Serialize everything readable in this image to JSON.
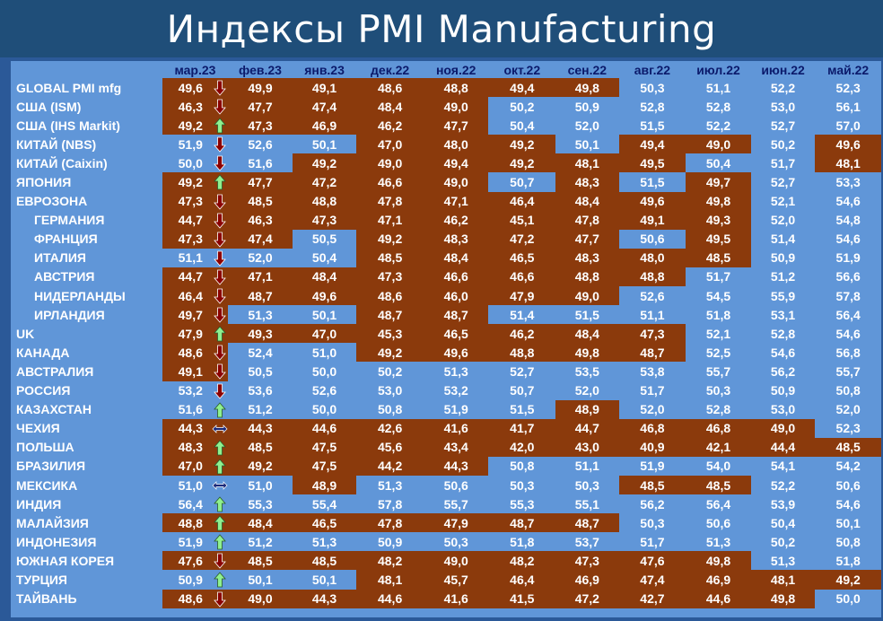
{
  "title": "Индексы PMI Manufacturing",
  "colors": {
    "above50": "#6096d8",
    "below50": "#8b3a0c",
    "up_arrow": "#8ff08f",
    "down_arrow": "#8b0000",
    "flat_arrow": "#1b2a7a"
  },
  "chart_data": {
    "type": "table",
    "columns": [
      "мар.23",
      "фев.23",
      "янв.23",
      "дек.22",
      "ноя.22",
      "окт.22",
      "сен.22",
      "авг.22",
      "июл.22",
      "июн.22",
      "май.22"
    ],
    "rows": [
      {
        "label": "GLOBAL PMI mfg",
        "indent": false,
        "trend": "down",
        "values": [
          "49,6",
          "49,9",
          "49,1",
          "48,6",
          "48,8",
          "49,4",
          "49,8",
          "50,3",
          "51,1",
          "52,2",
          "52,3"
        ]
      },
      {
        "label": "США (ISM)",
        "indent": false,
        "trend": "down",
        "values": [
          "46,3",
          "47,7",
          "47,4",
          "48,4",
          "49,0",
          "50,2",
          "50,9",
          "52,8",
          "52,8",
          "53,0",
          "56,1"
        ]
      },
      {
        "label": "США (IHS Markit)",
        "indent": false,
        "trend": "up",
        "values": [
          "49,2",
          "47,3",
          "46,9",
          "46,2",
          "47,7",
          "50,4",
          "52,0",
          "51,5",
          "52,2",
          "52,7",
          "57,0"
        ]
      },
      {
        "label": "КИТАЙ (NBS)",
        "indent": false,
        "trend": "down",
        "values": [
          "51,9",
          "52,6",
          "50,1",
          "47,0",
          "48,0",
          "49,2",
          "50,1",
          "49,4",
          "49,0",
          "50,2",
          "49,6"
        ]
      },
      {
        "label": "КИТАЙ (Caixin)",
        "indent": false,
        "trend": "down",
        "values": [
          "50,0",
          "51,6",
          "49,2",
          "49,0",
          "49,4",
          "49,2",
          "48,1",
          "49,5",
          "50,4",
          "51,7",
          "48,1"
        ]
      },
      {
        "label": "ЯПОНИЯ",
        "indent": false,
        "trend": "up",
        "values": [
          "49,2",
          "47,7",
          "47,2",
          "46,6",
          "49,0",
          "50,7",
          "48,3",
          "51,5",
          "49,7",
          "52,7",
          "53,3"
        ]
      },
      {
        "label": "ЕВРОЗОНА",
        "indent": false,
        "trend": "down",
        "values": [
          "47,3",
          "48,5",
          "48,8",
          "47,8",
          "47,1",
          "46,4",
          "48,4",
          "49,6",
          "49,8",
          "52,1",
          "54,6"
        ]
      },
      {
        "label": "ГЕРМАНИЯ",
        "indent": true,
        "trend": "down",
        "values": [
          "44,7",
          "46,3",
          "47,3",
          "47,1",
          "46,2",
          "45,1",
          "47,8",
          "49,1",
          "49,3",
          "52,0",
          "54,8"
        ]
      },
      {
        "label": "ФРАНЦИЯ",
        "indent": true,
        "trend": "down",
        "values": [
          "47,3",
          "47,4",
          "50,5",
          "49,2",
          "48,3",
          "47,2",
          "47,7",
          "50,6",
          "49,5",
          "51,4",
          "54,6"
        ]
      },
      {
        "label": "ИТАЛИЯ",
        "indent": true,
        "trend": "down",
        "values": [
          "51,1",
          "52,0",
          "50,4",
          "48,5",
          "48,4",
          "46,5",
          "48,3",
          "48,0",
          "48,5",
          "50,9",
          "51,9"
        ]
      },
      {
        "label": "АВСТРИЯ",
        "indent": true,
        "trend": "down",
        "values": [
          "44,7",
          "47,1",
          "48,4",
          "47,3",
          "46,6",
          "46,6",
          "48,8",
          "48,8",
          "51,7",
          "51,2",
          "56,6"
        ]
      },
      {
        "label": "НИДЕРЛАНДЫ",
        "indent": true,
        "trend": "down",
        "values": [
          "46,4",
          "48,7",
          "49,6",
          "48,6",
          "46,0",
          "47,9",
          "49,0",
          "52,6",
          "54,5",
          "55,9",
          "57,8"
        ]
      },
      {
        "label": "ИРЛАНДИЯ",
        "indent": true,
        "trend": "down",
        "values": [
          "49,7",
          "51,3",
          "50,1",
          "48,7",
          "48,7",
          "51,4",
          "51,5",
          "51,1",
          "51,8",
          "53,1",
          "56,4"
        ]
      },
      {
        "label": "UK",
        "indent": false,
        "trend": "up",
        "values": [
          "47,9",
          "49,3",
          "47,0",
          "45,3",
          "46,5",
          "46,2",
          "48,4",
          "47,3",
          "52,1",
          "52,8",
          "54,6"
        ]
      },
      {
        "label": "КАНАДА",
        "indent": false,
        "trend": "down",
        "values": [
          "48,6",
          "52,4",
          "51,0",
          "49,2",
          "49,6",
          "48,8",
          "49,8",
          "48,7",
          "52,5",
          "54,6",
          "56,8"
        ]
      },
      {
        "label": "АВСТРАЛИЯ",
        "indent": false,
        "trend": "down",
        "values": [
          "49,1",
          "50,5",
          "50,0",
          "50,2",
          "51,3",
          "52,7",
          "53,5",
          "53,8",
          "55,7",
          "56,2",
          "55,7"
        ]
      },
      {
        "label": "РОССИЯ",
        "indent": false,
        "trend": "down",
        "values": [
          "53,2",
          "53,6",
          "52,6",
          "53,0",
          "53,2",
          "50,7",
          "52,0",
          "51,7",
          "50,3",
          "50,9",
          "50,8"
        ]
      },
      {
        "label": "КАЗАХСТАН",
        "indent": false,
        "trend": "up",
        "values": [
          "51,6",
          "51,2",
          "50,0",
          "50,8",
          "51,9",
          "51,5",
          "48,9",
          "52,0",
          "52,8",
          "53,0",
          "52,0"
        ]
      },
      {
        "label": "ЧЕХИЯ",
        "indent": false,
        "trend": "flat",
        "values": [
          "44,3",
          "44,3",
          "44,6",
          "42,6",
          "41,6",
          "41,7",
          "44,7",
          "46,8",
          "46,8",
          "49,0",
          "52,3"
        ]
      },
      {
        "label": "ПОЛЬША",
        "indent": false,
        "trend": "up",
        "values": [
          "48,3",
          "48,5",
          "47,5",
          "45,6",
          "43,4",
          "42,0",
          "43,0",
          "40,9",
          "42,1",
          "44,4",
          "48,5"
        ]
      },
      {
        "label": "БРАЗИЛИЯ",
        "indent": false,
        "trend": "up",
        "values": [
          "47,0",
          "49,2",
          "47,5",
          "44,2",
          "44,3",
          "50,8",
          "51,1",
          "51,9",
          "54,0",
          "54,1",
          "54,2"
        ]
      },
      {
        "label": "МЕКСИКА",
        "indent": false,
        "trend": "flat",
        "values": [
          "51,0",
          "51,0",
          "48,9",
          "51,3",
          "50,6",
          "50,3",
          "50,3",
          "48,5",
          "48,5",
          "52,2",
          "50,6"
        ]
      },
      {
        "label": "ИНДИЯ",
        "indent": false,
        "trend": "up",
        "values": [
          "56,4",
          "55,3",
          "55,4",
          "57,8",
          "55,7",
          "55,3",
          "55,1",
          "56,2",
          "56,4",
          "53,9",
          "54,6"
        ]
      },
      {
        "label": "МАЛАЙЗИЯ",
        "indent": false,
        "trend": "up",
        "values": [
          "48,8",
          "48,4",
          "46,5",
          "47,8",
          "47,9",
          "48,7",
          "48,7",
          "50,3",
          "50,6",
          "50,4",
          "50,1"
        ]
      },
      {
        "label": "ИНДОНЕЗИЯ",
        "indent": false,
        "trend": "up",
        "values": [
          "51,9",
          "51,2",
          "51,3",
          "50,9",
          "50,3",
          "51,8",
          "53,7",
          "51,7",
          "51,3",
          "50,2",
          "50,8"
        ]
      },
      {
        "label": "ЮЖНАЯ КОРЕЯ",
        "indent": false,
        "trend": "down",
        "values": [
          "47,6",
          "48,5",
          "48,5",
          "48,2",
          "49,0",
          "48,2",
          "47,3",
          "47,6",
          "49,8",
          "51,3",
          "51,8"
        ]
      },
      {
        "label": "ТУРЦИЯ",
        "indent": false,
        "trend": "up",
        "values": [
          "50,9",
          "50,1",
          "50,1",
          "48,1",
          "45,7",
          "46,4",
          "46,9",
          "47,4",
          "46,9",
          "48,1",
          "49,2"
        ]
      },
      {
        "label": "ТАЙВАНЬ",
        "indent": false,
        "trend": "down",
        "values": [
          "48,6",
          "49,0",
          "44,3",
          "44,6",
          "41,6",
          "41,5",
          "47,2",
          "42,7",
          "44,6",
          "49,8",
          "50,0"
        ]
      }
    ]
  }
}
